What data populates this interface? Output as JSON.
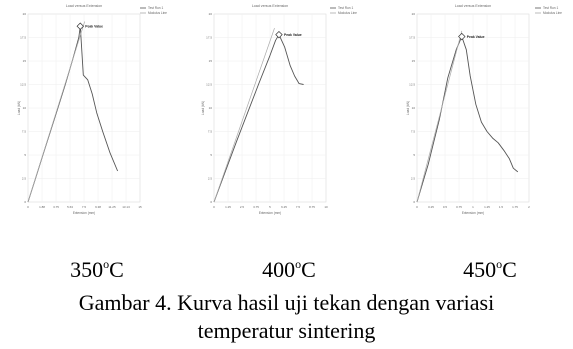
{
  "caption": {
    "line1": "Gambar 4. Kurva hasil uji tekan dengan variasi",
    "line2": "temperatur  sintering"
  },
  "temperatures": [
    {
      "value": "350",
      "deg": "o",
      "unit": "C"
    },
    {
      "value": "400",
      "deg": "o",
      "unit": "C"
    },
    {
      "value": "450",
      "deg": "o",
      "unit": "C"
    }
  ],
  "chart_data": [
    {
      "type": "line",
      "title": "Load versus Extension",
      "xlabel": "Extension (mm)",
      "ylabel": "Load (kN)",
      "xlim": [
        0,
        15
      ],
      "ylim": [
        0,
        20
      ],
      "legend": "top-right",
      "legend_entries": [
        "Test Run 1",
        "Modulus Line"
      ],
      "peak_label": "Peak Value",
      "series": [
        {
          "name": "Test Run 1",
          "color": "#555555",
          "x": [
            0,
            1,
            2,
            3,
            4,
            5,
            6,
            6.8,
            7.0,
            7.4,
            8.0,
            8.6,
            9.2,
            10,
            11,
            12
          ],
          "y": [
            0,
            2.5,
            5,
            7.5,
            10,
            12.5,
            15.2,
            17.5,
            18.7,
            13.5,
            13.0,
            11.5,
            9.5,
            7.5,
            5.2,
            3.3
          ]
        },
        {
          "name": "Modulus Line",
          "color": "#aaaaaa",
          "x": [
            0,
            7.6
          ],
          "y": [
            0,
            19.2
          ]
        }
      ],
      "peak": {
        "x": 7.0,
        "y": 18.7
      }
    },
    {
      "type": "line",
      "title": "Load versus Extension",
      "xlabel": "Extension (mm)",
      "ylabel": "Load (kN)",
      "xlim": [
        0,
        10
      ],
      "ylim": [
        0,
        20
      ],
      "legend": "top-right",
      "legend_entries": [
        "Test Run 1",
        "Modulus Line"
      ],
      "peak_label": "Peak Value",
      "series": [
        {
          "name": "Test Run 1",
          "color": "#555555",
          "x": [
            0,
            1,
            2,
            3,
            4,
            5,
            5.5,
            5.8,
            6.3,
            6.8,
            7.2,
            7.6,
            8.0
          ],
          "y": [
            0,
            3.2,
            6.4,
            9.5,
            12.6,
            15.6,
            17.2,
            17.8,
            16.5,
            14.5,
            13.4,
            12.6,
            12.5
          ]
        },
        {
          "name": "Modulus Line",
          "color": "#aaaaaa",
          "x": [
            0,
            5.4
          ],
          "y": [
            0,
            18.5
          ]
        }
      ],
      "peak": {
        "x": 5.8,
        "y": 17.8
      }
    },
    {
      "type": "line",
      "title": "Load versus Extension",
      "xlabel": "Extension (mm)",
      "ylabel": "Load (kN)",
      "xlim": [
        0,
        2
      ],
      "ylim": [
        0,
        20
      ],
      "legend": "top-right",
      "legend_entries": [
        "Test Run 1",
        "Modulus Line"
      ],
      "peak_label": "Peak Value",
      "series": [
        {
          "name": "Test Run 1",
          "color": "#555555",
          "x": [
            0,
            0.2,
            0.4,
            0.55,
            0.7,
            0.8,
            0.88,
            0.95,
            1.05,
            1.15,
            1.25,
            1.35,
            1.45,
            1.55,
            1.65,
            1.72,
            1.8
          ],
          "y": [
            0,
            4.0,
            8.8,
            13.2,
            16.2,
            17.6,
            16.2,
            13.4,
            10.4,
            8.5,
            7.5,
            6.8,
            6.3,
            5.5,
            4.6,
            3.6,
            3.2
          ]
        },
        {
          "name": "Modulus Line",
          "color": "#aaaaaa",
          "x": [
            0,
            0.8
          ],
          "y": [
            0,
            18.2
          ]
        }
      ],
      "peak": {
        "x": 0.8,
        "y": 17.6
      }
    }
  ]
}
